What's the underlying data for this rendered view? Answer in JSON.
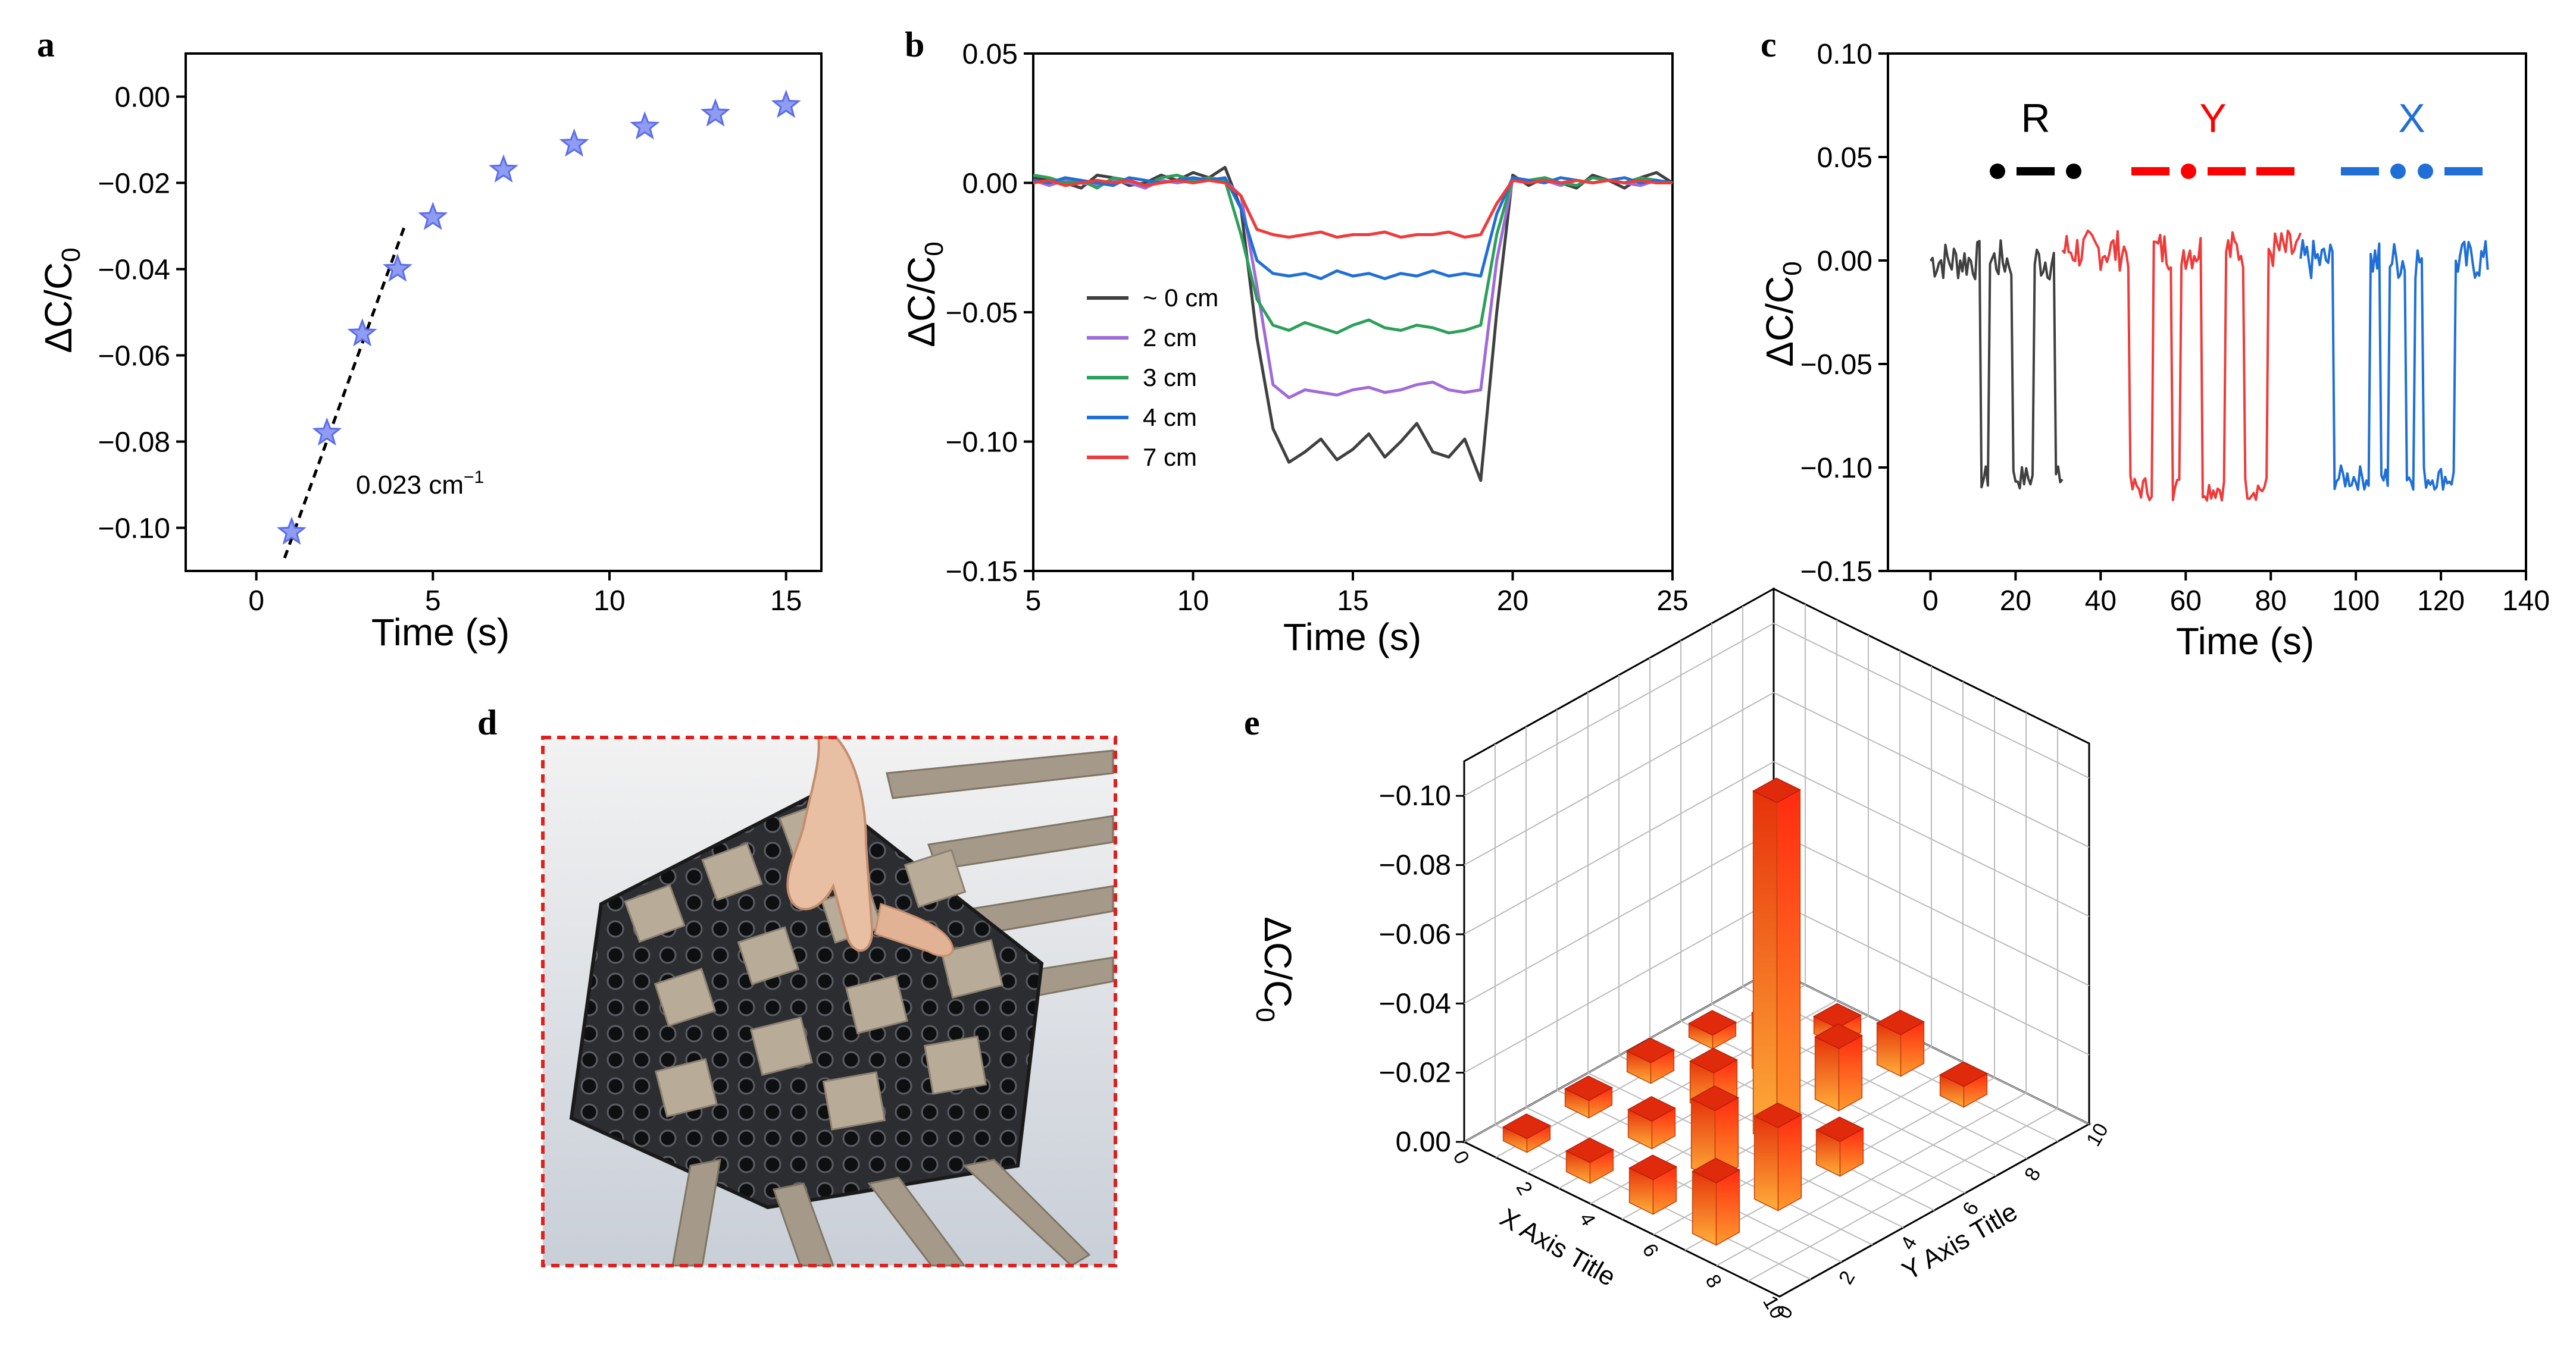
{
  "panels": {
    "a": {
      "letter": "a",
      "xlabel": "Time (s)",
      "ylabel": "ΔC/C",
      "ylabel_sub": "0",
      "annotation": "0.023 cm",
      "annotation_sup": "−1"
    },
    "b": {
      "letter": "b",
      "xlabel": "Time (s)",
      "ylabel": "ΔC/C",
      "ylabel_sub": "0"
    },
    "c": {
      "letter": "c",
      "xlabel": "Time (s)",
      "ylabel": "ΔC/C",
      "ylabel_sub": "0",
      "letters": [
        {
          "label": "R",
          "color": "#000000",
          "morse": ".-."
        },
        {
          "label": "Y",
          "color": "#ff0000",
          "morse": "-.--"
        },
        {
          "label": "X",
          "color": "#1f6fd6",
          "morse": "-..-"
        }
      ]
    },
    "d": {
      "letter": "d",
      "description_icon": "sensor-photo-icon"
    },
    "e": {
      "letter": "e",
      "zlabel": "ΔC/C",
      "zlabel_sub": "0",
      "xlabel": "X Axis Title",
      "ylabel": "Y Axis Title"
    }
  },
  "chart_data": [
    {
      "panel": "a",
      "type": "scatter",
      "x": [
        1,
        2,
        3,
        4,
        5,
        7,
        9,
        11,
        13,
        15
      ],
      "y": [
        -0.101,
        -0.078,
        -0.055,
        -0.04,
        -0.028,
        -0.017,
        -0.011,
        -0.007,
        -0.004,
        -0.002
      ],
      "marker": "star",
      "color": "#5b6ee8",
      "xlim": [
        -2,
        16
      ],
      "ylim": [
        -0.11,
        0.01
      ],
      "xticks": [
        0,
        5,
        10,
        15
      ],
      "xtick_labels": [
        "0",
        "5",
        "10",
        "15"
      ],
      "yticks": [
        -0.1,
        -0.08,
        -0.06,
        -0.04,
        -0.02,
        0
      ],
      "ytick_labels": [
        "−0.10",
        "−0.08",
        "−0.06",
        "−0.04",
        "−0.02",
        "0.00"
      ],
      "fit_line": {
        "x": [
          0.8,
          4.2
        ],
        "y": [
          -0.107,
          -0.03
        ],
        "style": "dashed",
        "slope_label": "0.023 cm⁻¹"
      }
    },
    {
      "panel": "b",
      "type": "line",
      "x": [
        5,
        5.5,
        6,
        6.5,
        7,
        7.5,
        8,
        8.5,
        9,
        9.5,
        10,
        10.5,
        11,
        11.5,
        12,
        12.5,
        13,
        13.5,
        14,
        14.5,
        15,
        15.5,
        16,
        16.5,
        17,
        17.5,
        18,
        18.5,
        19,
        19.5,
        20,
        20.5,
        21,
        21.5,
        22,
        22.5,
        23,
        23.5,
        24,
        24.5,
        25
      ],
      "series": [
        {
          "name": "~ 0 cm",
          "color": "#404040",
          "values": [
            0.002,
            0.001,
            0.0,
            -0.002,
            0.003,
            0.002,
            -0.001,
            0.0,
            0.003,
            0.001,
            0.004,
            0.002,
            0.006,
            -0.01,
            -0.06,
            -0.095,
            -0.108,
            -0.104,
            -0.099,
            -0.107,
            -0.103,
            -0.097,
            -0.106,
            -0.1,
            -0.093,
            -0.104,
            -0.106,
            -0.099,
            -0.115,
            -0.05,
            0.003,
            -0.001,
            0.002,
            0.0,
            -0.002,
            0.003,
            0.001,
            -0.002,
            0.002,
            0.004,
            0.0
          ]
        },
        {
          "name": "2 cm",
          "color": "#9e6bd8",
          "values": [
            0.001,
            -0.001,
            0.001,
            0.0,
            -0.001,
            0.001,
            0.0,
            -0.002,
            0.001,
            0.0,
            0.001,
            0.002,
            0.001,
            -0.005,
            -0.04,
            -0.078,
            -0.083,
            -0.08,
            -0.081,
            -0.082,
            -0.08,
            -0.079,
            -0.081,
            -0.08,
            -0.078,
            -0.077,
            -0.08,
            -0.081,
            -0.08,
            -0.03,
            0.001,
            0.0,
            0.001,
            -0.001,
            0.001,
            0.0,
            0.001,
            0.0,
            -0.001,
            0.001,
            0.0
          ]
        },
        {
          "name": "3 cm",
          "color": "#2ca05a",
          "values": [
            0.003,
            0.002,
            0.0,
            0.001,
            -0.002,
            0.002,
            0.001,
            -0.001,
            0.002,
            0.003,
            0.001,
            0.002,
            0.001,
            -0.02,
            -0.045,
            -0.055,
            -0.057,
            -0.054,
            -0.056,
            -0.058,
            -0.055,
            -0.053,
            -0.056,
            -0.057,
            -0.055,
            -0.056,
            -0.058,
            -0.057,
            -0.055,
            -0.02,
            0.002,
            0.001,
            0.002,
            0.0,
            -0.001,
            0.002,
            0.001,
            0.0,
            0.002,
            0.001,
            0.0
          ]
        },
        {
          "name": "4 cm",
          "color": "#1f6fd6",
          "values": [
            0.001,
            0.0,
            0.002,
            0.001,
            0.0,
            -0.001,
            0.002,
            0.001,
            0.0,
            0.001,
            0.002,
            0.001,
            0.002,
            -0.01,
            -0.03,
            -0.035,
            -0.036,
            -0.035,
            -0.037,
            -0.034,
            -0.036,
            -0.035,
            -0.037,
            -0.035,
            -0.036,
            -0.034,
            -0.036,
            -0.035,
            -0.036,
            -0.012,
            0.002,
            0.001,
            0.0,
            0.002,
            0.001,
            0.0,
            0.001,
            0.002,
            0.0,
            0.001,
            0.0
          ]
        },
        {
          "name": "7 cm",
          "color": "#ee3b3b",
          "values": [
            0.0,
            0.001,
            -0.001,
            0.0,
            0.001,
            0.0,
            0.001,
            -0.001,
            0.0,
            0.001,
            0.0,
            0.001,
            0.0,
            -0.005,
            -0.018,
            -0.02,
            -0.021,
            -0.02,
            -0.019,
            -0.021,
            -0.02,
            -0.02,
            -0.019,
            -0.021,
            -0.02,
            -0.02,
            -0.019,
            -0.021,
            -0.02,
            -0.008,
            0.001,
            0.0,
            0.001,
            0.0,
            0.001,
            0.0,
            0.001,
            0.0,
            0.001,
            0.0,
            0.0
          ]
        }
      ],
      "xlim": [
        5,
        25
      ],
      "ylim": [
        -0.15,
        0.05
      ],
      "xticks": [
        5,
        10,
        15,
        20,
        25
      ],
      "xtick_labels": [
        "5",
        "10",
        "15",
        "20",
        "25"
      ],
      "yticks": [
        -0.15,
        -0.1,
        -0.05,
        0,
        0.05
      ],
      "ytick_labels": [
        "−0.15",
        "−0.10",
        "−0.05",
        "0.00",
        "0.05"
      ],
      "legend": "center-left"
    },
    {
      "panel": "c",
      "type": "line",
      "series": [
        {
          "name": "R",
          "color": "#404040",
          "x_range": [
            0,
            31
          ],
          "pulses": [
            [
              12,
              13.5
            ],
            [
              19.5,
              24
            ],
            [
              29.5,
              31
            ]
          ],
          "base": 0.0,
          "low": -0.105
        },
        {
          "name": "Y",
          "color": "#ee3b3b",
          "x_range": [
            31,
            87
          ],
          "pulses": [
            [
              47,
              52
            ],
            [
              57,
              58.5
            ],
            [
              64,
              69
            ],
            [
              74,
              79
            ]
          ],
          "base": 0.005,
          "low": -0.11
        },
        {
          "name": "X",
          "color": "#1f6fd6",
          "x_range": [
            87,
            131
          ],
          "pulses": [
            [
              95,
              103
            ],
            [
              106,
              107.5
            ],
            [
              112,
              113.5
            ],
            [
              116,
              123
            ]
          ],
          "base": 0.0,
          "low": -0.105
        }
      ],
      "xlim": [
        -10,
        140
      ],
      "ylim": [
        -0.15,
        0.1
      ],
      "xticks": [
        0,
        20,
        40,
        60,
        80,
        100,
        120,
        140
      ],
      "xtick_labels": [
        "0",
        "20",
        "40",
        "60",
        "80",
        "100",
        "120",
        "140"
      ],
      "yticks": [
        -0.15,
        -0.1,
        -0.05,
        0,
        0.05,
        0.1
      ],
      "ytick_labels": [
        "−0.15",
        "−0.10",
        "−0.05",
        "0.00",
        "0.05",
        "0.10"
      ]
    },
    {
      "panel": "e",
      "type": "bar3d",
      "zlim": [
        0,
        -0.11
      ],
      "zticks": [
        0,
        -0.02,
        -0.04,
        -0.06,
        -0.08,
        -0.1
      ],
      "ztick_labels": [
        "0.00",
        "−0.02",
        "−0.04",
        "−0.06",
        "−0.08",
        "−0.10"
      ],
      "xticks": [
        0,
        2,
        4,
        6,
        8,
        10
      ],
      "yticks": [
        0,
        2,
        4,
        6,
        8,
        10
      ],
      "bars": [
        {
          "x": 1,
          "y": 1,
          "z": -0.004
        },
        {
          "x": 1,
          "y": 3,
          "z": -0.005
        },
        {
          "x": 1,
          "y": 5,
          "z": -0.006
        },
        {
          "x": 1,
          "y": 7,
          "z": -0.004
        },
        {
          "x": 3,
          "y": 1,
          "z": -0.006
        },
        {
          "x": 3,
          "y": 3,
          "z": -0.008
        },
        {
          "x": 3,
          "y": 5,
          "z": -0.012
        },
        {
          "x": 3,
          "y": 7,
          "z": -0.016
        },
        {
          "x": 3,
          "y": 9,
          "z": -0.005
        },
        {
          "x": 5,
          "y": 1,
          "z": -0.01
        },
        {
          "x": 5,
          "y": 3,
          "z": -0.02
        },
        {
          "x": 5,
          "y": 5,
          "z": -0.099
        },
        {
          "x": 5,
          "y": 7,
          "z": -0.018
        },
        {
          "x": 5,
          "y": 9,
          "z": -0.012
        },
        {
          "x": 7,
          "y": 1,
          "z": -0.018
        },
        {
          "x": 7,
          "y": 3,
          "z": -0.024
        },
        {
          "x": 7,
          "y": 5,
          "z": -0.01
        },
        {
          "x": 7,
          "y": 9,
          "z": -0.006
        }
      ]
    }
  ]
}
